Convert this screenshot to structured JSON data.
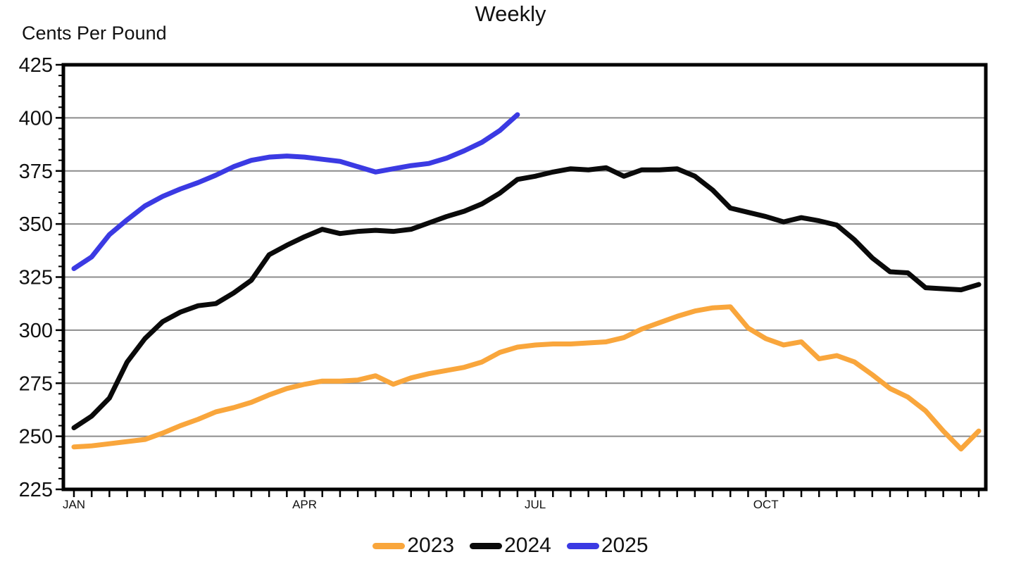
{
  "page": {
    "title": "Weekly"
  },
  "chart_data": {
    "type": "line",
    "title": "Weekly",
    "ylabel": "Cents Per Pound",
    "x_unit": "week_of_year",
    "ylim": [
      225,
      425
    ],
    "y_tick_step": 25,
    "y_minor_tick_step": 5,
    "y_ticks": [
      425,
      400,
      375,
      350,
      325,
      300,
      275,
      250,
      225
    ],
    "grid": true,
    "legend_position": "bottom",
    "weeks_per_year": 52,
    "x_month_ticks": [
      {
        "label": "JAN",
        "week": 1
      },
      {
        "label": "APR",
        "week": 14
      },
      {
        "label": "JUL",
        "week": 27
      },
      {
        "label": "OCT",
        "week": 40
      }
    ],
    "series": [
      {
        "name": "2023",
        "color": "#F9A63C",
        "start_week": 1,
        "values": [
          245,
          245.5,
          246.5,
          247.5,
          248.5,
          251.5,
          255,
          258,
          261.5,
          263.5,
          266,
          269.5,
          272.5,
          274.5,
          276,
          276,
          276.5,
          278.5,
          274.5,
          277.5,
          279.5,
          281,
          282.5,
          285,
          289.5,
          292,
          293,
          293.5,
          293.5,
          294,
          294.5,
          296.5,
          300.5,
          303.5,
          306.5,
          309,
          310.5,
          311,
          301,
          296,
          293,
          294.5,
          286.5,
          288,
          285,
          279,
          272.5,
          268.5,
          262,
          252.5,
          244,
          252.5
        ]
      },
      {
        "name": "2024",
        "color": "#0A0A0A",
        "start_week": 1,
        "values": [
          254,
          259.5,
          268,
          285,
          296,
          304,
          308.5,
          311.5,
          312.5,
          317.5,
          323.5,
          335.5,
          340,
          344,
          347.5,
          345.5,
          346.5,
          347,
          346.5,
          347.5,
          350.5,
          353.5,
          356,
          359.5,
          364.5,
          371,
          372.5,
          374.5,
          376,
          375.5,
          376.5,
          372.5,
          375.5,
          375.5,
          376,
          372.5,
          366,
          357.5,
          355.5,
          353.5,
          351,
          353,
          351.5,
          349.5,
          342.5,
          334,
          327.5,
          327,
          320,
          319.5,
          319,
          321.5
        ]
      },
      {
        "name": "2025",
        "color": "#3B3AE3",
        "start_week": 1,
        "values": [
          329,
          334.5,
          345,
          352,
          358.5,
          363,
          366.5,
          369.5,
          373,
          377,
          380,
          381.5,
          382,
          381.5,
          380.5,
          379.5,
          377,
          374.5,
          376,
          377.5,
          378.5,
          381,
          384.5,
          388.5,
          394,
          401.5
        ]
      }
    ]
  }
}
